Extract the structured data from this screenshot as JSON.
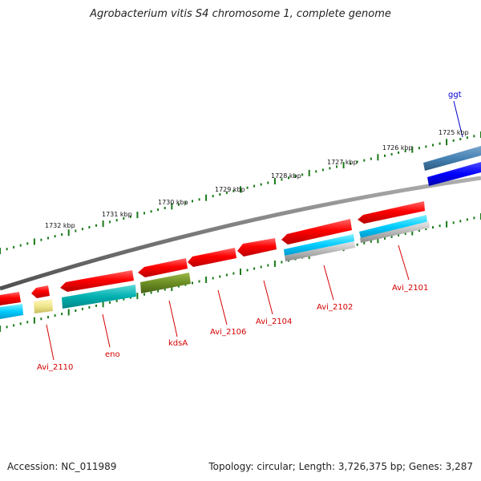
{
  "title": "Agrobacterium vitis S4 chromosome 1, complete genome",
  "footer": {
    "accession": "Accession: NC_011989",
    "summary": "Topology: circular; Length: 3,726,375 bp; Genes: 3,287"
  },
  "colors": {
    "backbone": "#808080",
    "cds": "#ff0000",
    "ruler_tick": "#1a7a1a",
    "gene_label": "#d40000",
    "ggt_label": "#0000cc"
  },
  "ruler": {
    "ticks": [
      "1725 kbp",
      "1726 kbp",
      "1727 kbp",
      "1728 kbp",
      "1729 kbp",
      "1730 kbp",
      "1731 kbp",
      "1732 kbp"
    ]
  },
  "gene_labels": [
    {
      "name": "ggt",
      "color": "#0000cc"
    },
    {
      "name": "Avi_2101",
      "color": "#d40000"
    },
    {
      "name": "Avi_2102",
      "color": "#d40000"
    },
    {
      "name": "Avi_2104",
      "color": "#d40000"
    },
    {
      "name": "Avi_2106",
      "color": "#d40000"
    },
    {
      "name": "kdsA",
      "color": "#d40000"
    },
    {
      "name": "eno",
      "color": "#d40000"
    },
    {
      "name": "Avi_2110",
      "color": "#d40000"
    }
  ]
}
